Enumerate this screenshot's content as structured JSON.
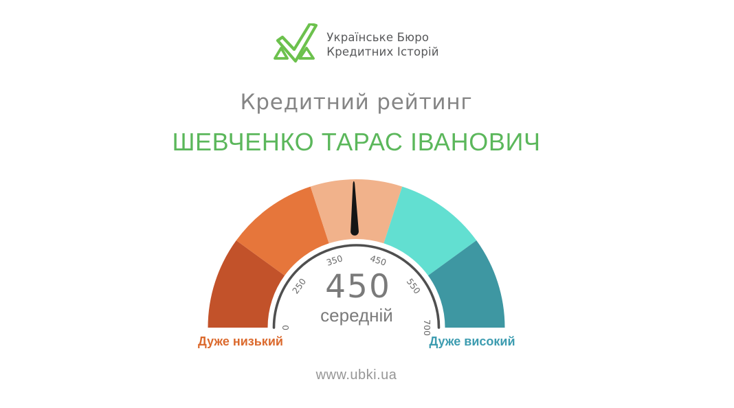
{
  "brand": {
    "line1": "Українське Бюро",
    "line2": "Кредитних Історій",
    "logo_color": "#6cc14d",
    "text_color": "#57585a"
  },
  "header": {
    "title": "Кредитний рейтинг",
    "title_color": "#858585",
    "person_name": "ШЕВЧЕНКО ТАРАС ІВАНОВИЧ",
    "person_name_color": "#5bb75b"
  },
  "chart_data": {
    "type": "gauge",
    "min": 0,
    "max": 700,
    "angle_span_deg": 180,
    "equal_angle_segments": true,
    "value": 450,
    "value_label": "450",
    "value_caption": "середній",
    "tick_labels": [
      "0",
      "250",
      "350",
      "450",
      "550",
      "700"
    ],
    "tick_values": [
      0,
      250,
      350,
      450,
      550,
      700
    ],
    "segments": [
      {
        "from": 0,
        "to": 250,
        "color": "#c2522a"
      },
      {
        "from": 250,
        "to": 350,
        "color": "#e6763b"
      },
      {
        "from": 350,
        "to": 450,
        "color": "#f1b28b"
      },
      {
        "from": 450,
        "to": 550,
        "color": "#62dfd1"
      },
      {
        "from": 550,
        "to": 700,
        "color": "#3e97a2"
      }
    ],
    "needle_angle_deg": 91,
    "needle_color": "#151515",
    "ring_color": "#4f4f4f",
    "left_label": {
      "text": "Дуже низький",
      "color": "#db6a2e"
    },
    "right_label": {
      "text": "Дуже високий",
      "color": "#3d9cb0"
    }
  },
  "footer": {
    "url": "www.ubki.ua"
  }
}
